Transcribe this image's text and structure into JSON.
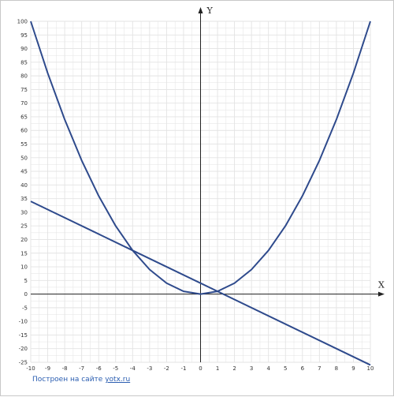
{
  "chart_data": {
    "type": "line",
    "title": "",
    "xlabel": "X",
    "ylabel": "Y",
    "xlim": [
      -10,
      10
    ],
    "ylim": [
      -25,
      100
    ],
    "x_ticks": [
      -10,
      -9,
      -8,
      -7,
      -6,
      -5,
      -4,
      -3,
      -2,
      -1,
      0,
      1,
      2,
      3,
      4,
      5,
      6,
      7,
      8,
      9,
      10
    ],
    "y_ticks": [
      -25,
      -20,
      -15,
      -10,
      -5,
      0,
      5,
      10,
      15,
      20,
      25,
      30,
      35,
      40,
      45,
      50,
      55,
      60,
      65,
      70,
      75,
      80,
      85,
      90,
      95,
      100
    ],
    "grid": true,
    "series": [
      {
        "x": [
          -10,
          -9,
          -8,
          -7,
          -6,
          -5,
          -4,
          -3,
          -2,
          -1,
          0,
          1,
          2,
          3,
          4,
          5,
          6,
          7,
          8,
          9,
          10
        ],
        "y": [
          100,
          81,
          64,
          49,
          36,
          25,
          16,
          9,
          4,
          1,
          0,
          1,
          4,
          9,
          16,
          25,
          36,
          49,
          64,
          81,
          100
        ]
      },
      {
        "x": [
          -10,
          -4,
          1,
          10
        ],
        "y": [
          34,
          16,
          1,
          -26
        ]
      }
    ],
    "colors": {
      "curve": "#2e4a8c",
      "grid": "#e3e3e3",
      "axis": "#222222"
    }
  },
  "credit": {
    "prefix": "Построен на сайте",
    "link": "yotx.ru"
  }
}
